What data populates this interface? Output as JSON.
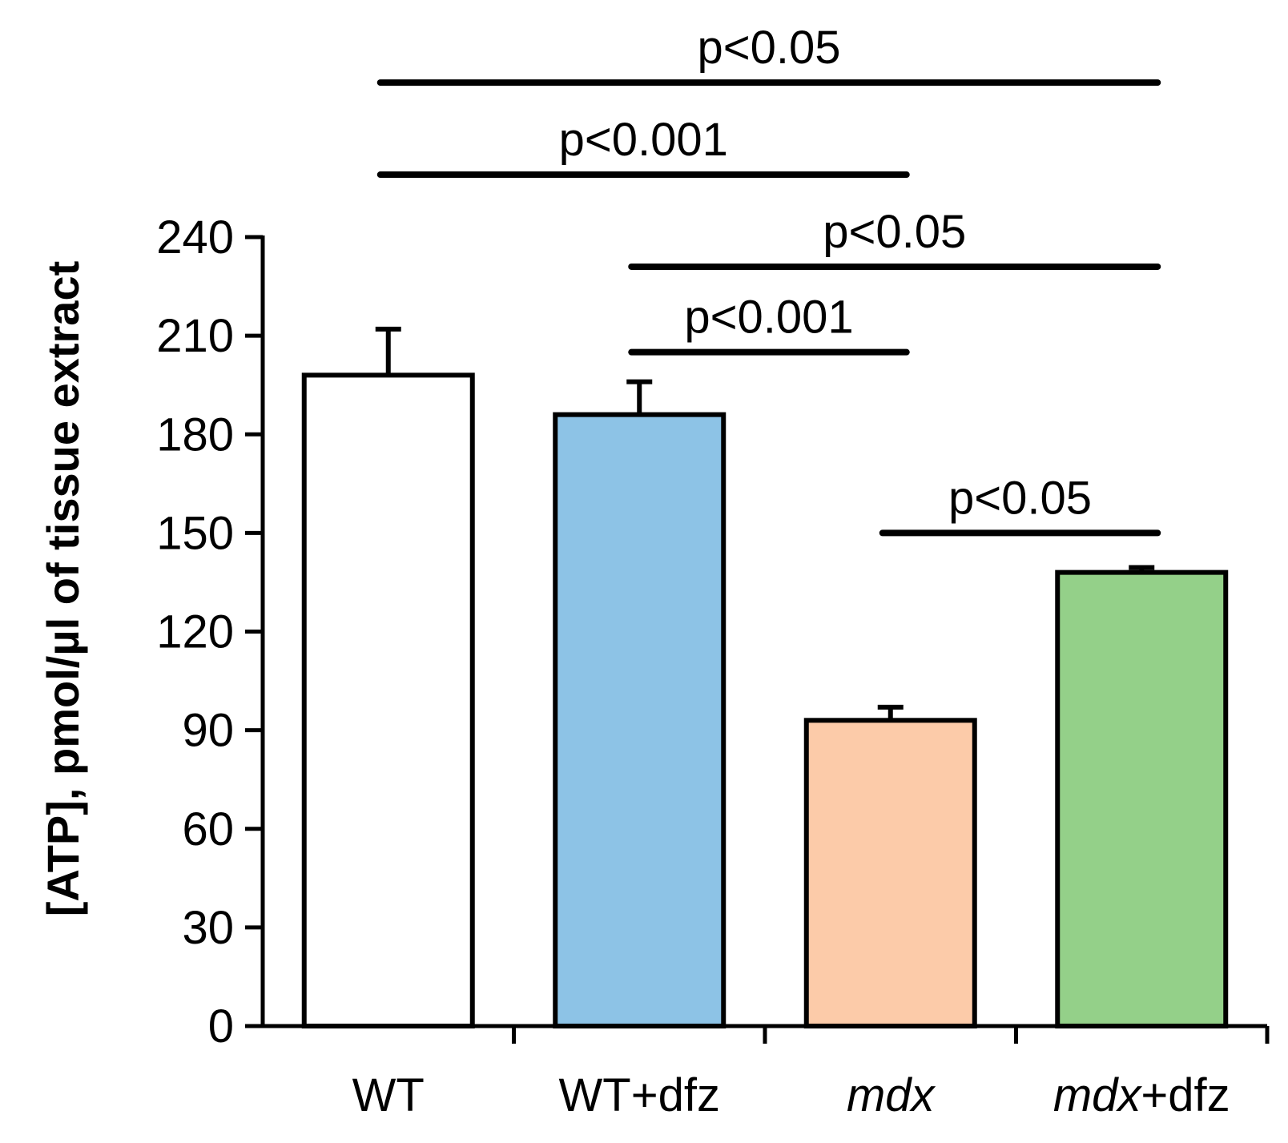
{
  "chart_data": {
    "type": "bar",
    "title": "",
    "xlabel": "",
    "ylabel": "[ATP], pmol/µl of tissue extract",
    "ylim": [
      0,
      240
    ],
    "yticks": [
      0,
      30,
      60,
      90,
      120,
      150,
      180,
      210,
      240
    ],
    "grid": false,
    "categories": [
      {
        "label": "WT",
        "italic_part": "",
        "rest": "WT"
      },
      {
        "label": "WT+dfz",
        "italic_part": "",
        "rest": "WT+dfz"
      },
      {
        "label": "mdx",
        "italic_part": "mdx",
        "rest": ""
      },
      {
        "label": "mdx+dfz",
        "italic_part": "mdx",
        "rest": "+dfz"
      }
    ],
    "values": [
      198,
      186,
      93,
      138
    ],
    "errors": [
      14,
      10,
      4,
      1.5
    ],
    "colors": [
      "#ffffff",
      "#8dc3e6",
      "#fccba9",
      "#94d089"
    ],
    "significance": [
      {
        "from": 0,
        "to": 3,
        "label": "p<0.05",
        "y": 287
      },
      {
        "from": 0,
        "to": 2,
        "label": "p<0.001",
        "y": 259
      },
      {
        "from": 1,
        "to": 3,
        "label": "p<0.05",
        "y": 231
      },
      {
        "from": 1,
        "to": 2,
        "label": "p<0.001",
        "y": 205
      },
      {
        "from": 2,
        "to": 3,
        "label": "p<0.05",
        "y": 150
      }
    ]
  }
}
